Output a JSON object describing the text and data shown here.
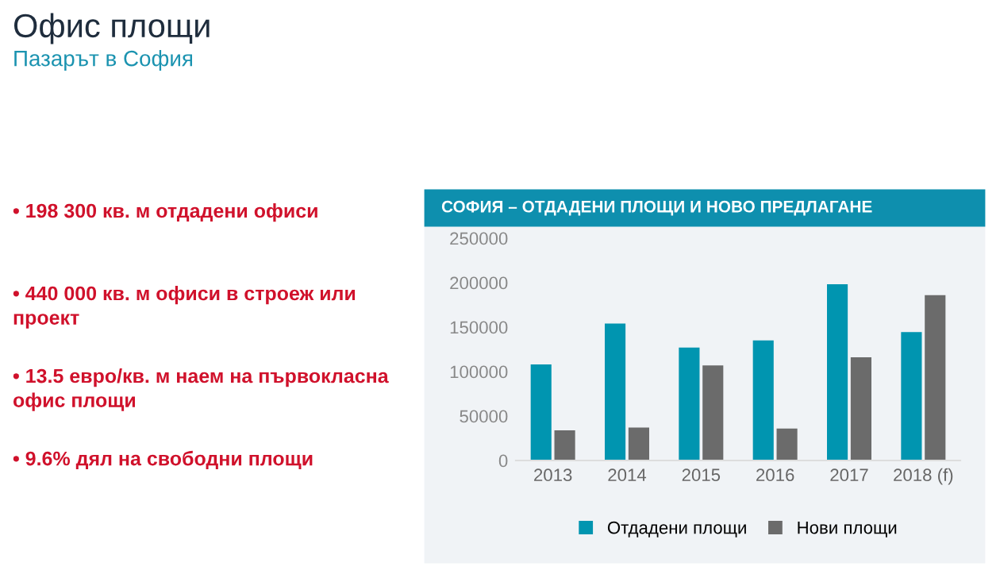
{
  "chart_data": {
    "type": "bar",
    "title": "Офис площи",
    "subtitle": "Пазарът в София",
    "annotations": [
      "СОФИЯ – ОТДАДЕНИ ПЛОЩИ И НОВО ПРЕДЛАГАНЕ",
      "• 198 300 кв. м отдадени офиси",
      "• 440 000 кв. м офиси в строеж или проект",
      "• 13.5 евро/кв. м наем на първокласна офис площи",
      "• 9.6% дял на свободни площи"
    ],
    "categories": [
      "2013",
      "2014",
      "2015",
      "2016",
      "2017",
      "2018 (f)"
    ],
    "series": [
      {
        "name": "Отдадени площи",
        "color": "#0095b0",
        "values": [
          108000,
          154000,
          127000,
          135000,
          198300,
          144500
        ]
      },
      {
        "name": "Нови площи",
        "color": "#6b6b6b",
        "values": [
          34000,
          37000,
          107000,
          36000,
          116000,
          186000
        ]
      }
    ],
    "ylim": [
      0,
      250000
    ],
    "yticks": [
      0,
      50000,
      100000,
      150000,
      200000,
      250000
    ],
    "grid": false,
    "legend": "bottom"
  }
}
